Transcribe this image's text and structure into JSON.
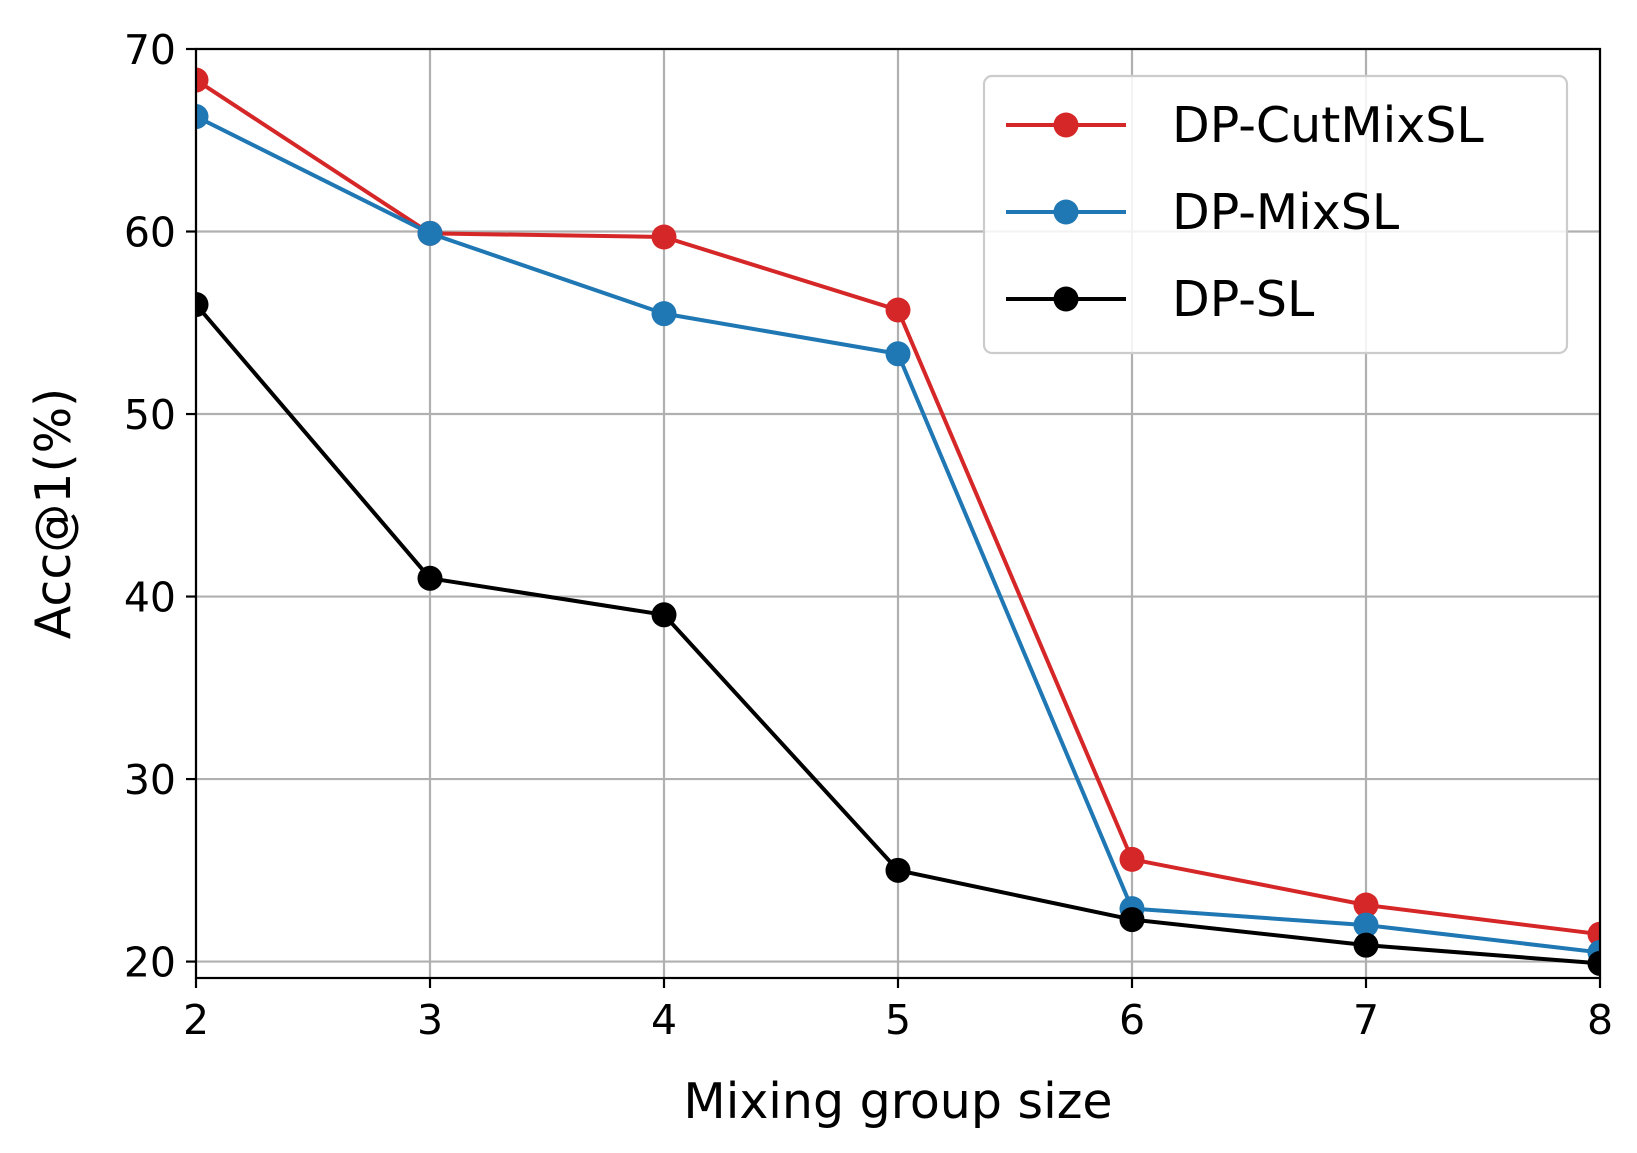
{
  "chart_data": {
    "type": "line",
    "title": "",
    "xlabel": "Mixing group size",
    "ylabel": "Acc@1(%)",
    "x": [
      2,
      3,
      4,
      5,
      6,
      7,
      8
    ],
    "xlim": [
      2,
      8
    ],
    "ylim": [
      19.1,
      70
    ],
    "xticks": [
      2,
      3,
      4,
      5,
      6,
      7,
      8
    ],
    "yticks": [
      20,
      30,
      40,
      50,
      60,
      70
    ],
    "xtick_labels": [
      "2",
      "3",
      "4",
      "5",
      "6",
      "7",
      "8"
    ],
    "ytick_labels": [
      "20",
      "30",
      "40",
      "50",
      "60",
      "70"
    ],
    "grid": true,
    "legend_position": "top-right",
    "series": [
      {
        "name": "DP-CutMixSL",
        "color": "#d62728",
        "marker": "circle",
        "values": [
          68.3,
          59.9,
          59.7,
          55.7,
          25.6,
          23.1,
          21.5
        ]
      },
      {
        "name": "DP-MixSL",
        "color": "#1f77b4",
        "marker": "circle",
        "values": [
          66.3,
          59.9,
          55.5,
          53.3,
          22.9,
          22.0,
          20.5
        ]
      },
      {
        "name": "DP-SL",
        "color": "#000000",
        "marker": "circle",
        "values": [
          56.0,
          41.0,
          39.0,
          25.0,
          22.3,
          20.9,
          19.9
        ]
      }
    ]
  }
}
